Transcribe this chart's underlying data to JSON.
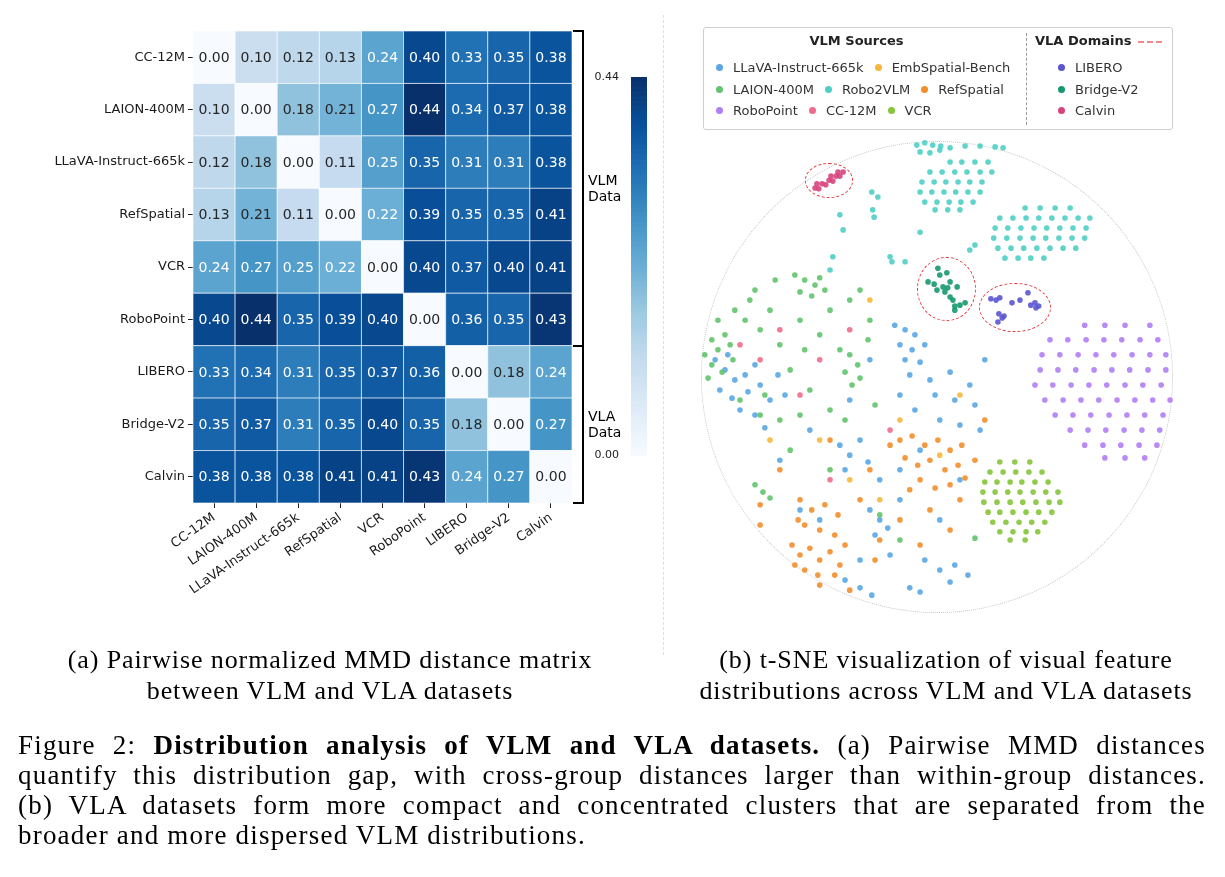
{
  "chart_data": [
    {
      "type": "heatmap",
      "categories": [
        "CC-12M",
        "LAION-400M",
        "LLaVA-Instruct-665k",
        "RefSpatial",
        "VCR",
        "RoboPoint",
        "LIBERO",
        "Bridge-V2",
        "Calvin"
      ],
      "y_categories": [
        "CC-12M",
        "LAION-400M",
        "LLaVA-Instruct-665k",
        "RefSpatial",
        "VCR",
        "RoboPoint",
        "LIBERO",
        "Bridge-V2",
        "Calvin"
      ],
      "cells": [
        [
          0,
          0.1,
          0.12,
          0.13,
          0.24,
          0.4,
          0.33,
          0.35,
          0.38
        ],
        [
          0.1,
          0,
          0.18,
          0.21,
          0.27,
          0.44,
          0.34,
          0.37,
          0.38
        ],
        [
          0.12,
          0.18,
          0,
          0.11,
          0.25,
          0.35,
          0.31,
          0.31,
          0.38
        ],
        [
          0.13,
          0.21,
          0.11,
          0,
          0.22,
          0.39,
          0.35,
          0.35,
          0.41
        ],
        [
          0.24,
          0.27,
          0.25,
          0.22,
          0,
          0.4,
          0.37,
          0.4,
          0.41
        ],
        [
          0.4,
          0.44,
          0.35,
          0.39,
          0.4,
          0,
          0.36,
          0.35,
          0.43
        ],
        [
          0.33,
          0.34,
          0.31,
          0.35,
          0.37,
          0.36,
          0,
          0.18,
          0.24
        ],
        [
          0.35,
          0.37,
          0.31,
          0.35,
          0.4,
          0.35,
          0.18,
          0,
          0.27
        ],
        [
          0.38,
          0.38,
          0.38,
          0.41,
          0.41,
          0.43,
          0.24,
          0.27,
          0
        ]
      ],
      "cell_labels": [
        [
          "0.00",
          "0.10",
          "0.12",
          "0.13",
          "0.24",
          "0.40",
          "0.33",
          "0.35",
          "0.38"
        ],
        [
          "0.10",
          "0.00",
          "0.18",
          "0.21",
          "0.27",
          "0.44",
          "0.34",
          "0.37",
          "0.38"
        ],
        [
          "0.12",
          "0.18",
          "0.00",
          "0.11",
          "0.25",
          "0.35",
          "0.31",
          "0.31",
          "0.38"
        ],
        [
          "0.13",
          "0.21",
          "0.11",
          "0.00",
          "0.22",
          "0.39",
          "0.35",
          "0.35",
          "0.41"
        ],
        [
          "0.24",
          "0.27",
          "0.25",
          "0.22",
          "0.00",
          "0.40",
          "0.37",
          "0.40",
          "0.41"
        ],
        [
          "0.40",
          "0.44",
          "0.35",
          "0.39",
          "0.40",
          "0.00",
          "0.36",
          "0.35",
          "0.43"
        ],
        [
          "0.33",
          "0.34",
          "0.31",
          "0.35",
          "0.37",
          "0.36",
          "0.00",
          "0.18",
          "0.24"
        ],
        [
          "0.35",
          "0.37",
          "0.31",
          "0.35",
          "0.40",
          "0.35",
          "0.18",
          "0.00",
          "0.27"
        ],
        [
          "0.38",
          "0.38",
          "0.38",
          "0.41",
          "0.41",
          "0.43",
          "0.24",
          "0.27",
          "0.00"
        ]
      ],
      "clim": [
        0,
        0.44
      ],
      "cticks": [
        {
          "value": 0,
          "label": "0.00"
        },
        0.44
      ],
      "annotations": [
        "(a) Pairwise normalized MMD distance matrix between VLM and VLA datasets",
        "VLM Data",
        "VLA Data"
      ]
    },
    {
      "type": "other",
      "legend": "top",
      "legend_title": "VLM Sources",
      "annotations": [
        "(b) t-SNE visualization of visual feature distributions across VLM and VLA datasets",
        "VLA Domains"
      ],
      "series": [
        {
          "name": "LLaVA-Instruct-665k",
          "color": "#5aa7e3"
        },
        {
          "name": "EmbSpatial-Bench",
          "color": "#f5b83d"
        },
        {
          "name": "LAION-400M",
          "color": "#62c46d"
        },
        {
          "name": "Robo2VLM",
          "color": "#4fcfc4"
        },
        {
          "name": "RefSpatial",
          "color": "#f28e2c"
        },
        {
          "name": "RoboPoint",
          "color": "#b07ef5"
        },
        {
          "name": "CC-12M",
          "color": "#f06b8b"
        },
        {
          "name": "VCR",
          "color": "#86c43a"
        },
        {
          "name": "LIBERO",
          "color": "#5b55d0",
          "line_style": "dashed"
        },
        {
          "name": "Bridge-V2",
          "color": "#16996b",
          "line_style": "dashed"
        },
        {
          "name": "Calvin",
          "color": "#d6447e",
          "line_style": "dashed"
        }
      ]
    },
    {
      "type": "other",
      "annotations": [
        "Figure 2:",
        "Distribution analysis of VLM and VLA datasets.",
        "(a) Pairwise MMD distances",
        "quantify this distribution gap, with cross-group distances larger than within-group distances.",
        "(b) VLA datasets form more compact and concentrated clusters that are separated from the",
        "broader and more dispersed VLM distributions."
      ]
    }
  ]
}
